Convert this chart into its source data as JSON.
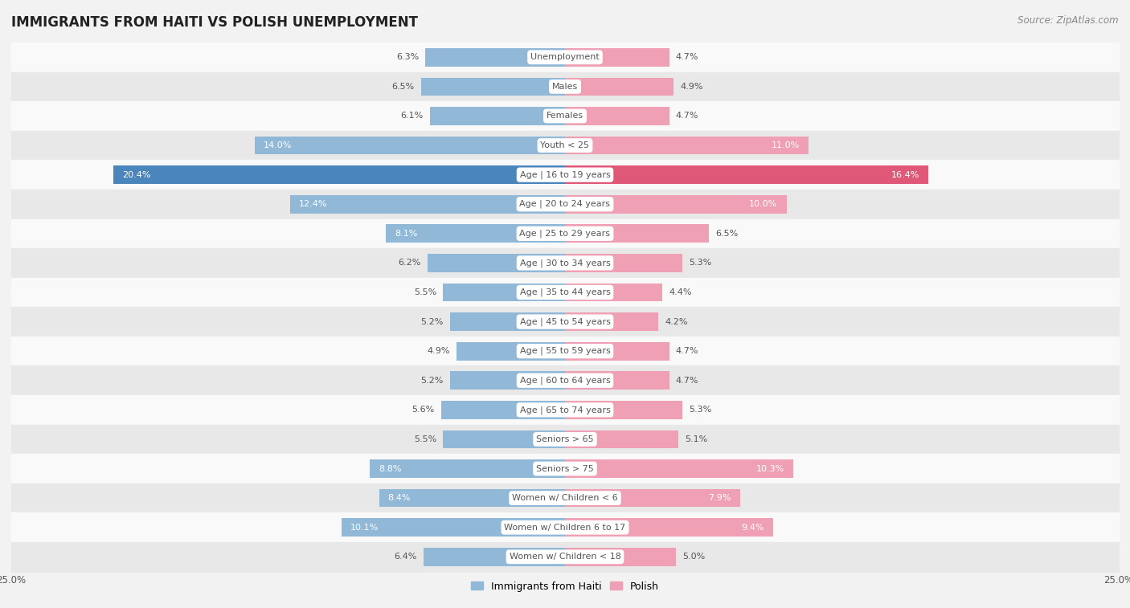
{
  "title": "IMMIGRANTS FROM HAITI VS POLISH UNEMPLOYMENT",
  "source": "Source: ZipAtlas.com",
  "categories": [
    "Unemployment",
    "Males",
    "Females",
    "Youth < 25",
    "Age | 16 to 19 years",
    "Age | 20 to 24 years",
    "Age | 25 to 29 years",
    "Age | 30 to 34 years",
    "Age | 35 to 44 years",
    "Age | 45 to 54 years",
    "Age | 55 to 59 years",
    "Age | 60 to 64 years",
    "Age | 65 to 74 years",
    "Seniors > 65",
    "Seniors > 75",
    "Women w/ Children < 6",
    "Women w/ Children 6 to 17",
    "Women w/ Children < 18"
  ],
  "haiti_values": [
    6.3,
    6.5,
    6.1,
    14.0,
    20.4,
    12.4,
    8.1,
    6.2,
    5.5,
    5.2,
    4.9,
    5.2,
    5.6,
    5.5,
    8.8,
    8.4,
    10.1,
    6.4
  ],
  "polish_values": [
    4.7,
    4.9,
    4.7,
    11.0,
    16.4,
    10.0,
    6.5,
    5.3,
    4.4,
    4.2,
    4.7,
    4.7,
    5.3,
    5.1,
    10.3,
    7.9,
    9.4,
    5.0
  ],
  "haiti_color": "#92b8d8",
  "polish_color": "#f0a0b4",
  "haiti_highlight_color": "#4a86bc",
  "polish_highlight_color": "#e05878",
  "highlight_row": 4,
  "axis_max": 25.0,
  "bar_height": 0.62,
  "bg_color": "#f2f2f2",
  "row_bg_even": "#f9f9f9",
  "row_bg_odd": "#e8e8e8",
  "label_dark": "#555555",
  "label_white": "#ffffff",
  "title_fontsize": 12,
  "source_fontsize": 8.5,
  "value_fontsize": 8,
  "category_fontsize": 8,
  "axis_label_fontsize": 8.5,
  "legend_fontsize": 9
}
